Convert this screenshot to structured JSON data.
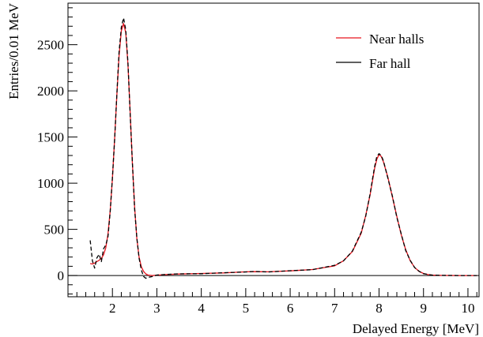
{
  "chart_data": {
    "type": "line",
    "title": "",
    "xlabel": "Delayed Energy [MeV]",
    "ylabel": "Entries/0.01 MeV",
    "xlim": [
      1.0,
      10.25
    ],
    "ylim": [
      -230,
      2950
    ],
    "xticks": [
      2,
      3,
      4,
      5,
      6,
      7,
      8,
      9,
      10
    ],
    "yticks": [
      0,
      500,
      1000,
      1500,
      2000,
      2500
    ],
    "grid": false,
    "legend_position": "top-right",
    "series": [
      {
        "name": "Near halls",
        "color": "#e8141e",
        "style": "solid",
        "x": [
          1.5,
          1.55,
          1.6,
          1.65,
          1.7,
          1.75,
          1.8,
          1.85,
          1.9,
          1.95,
          2.0,
          2.05,
          2.1,
          2.15,
          2.2,
          2.25,
          2.3,
          2.35,
          2.4,
          2.45,
          2.5,
          2.55,
          2.6,
          2.65,
          2.7,
          2.75,
          2.8,
          2.9,
          3.0,
          3.2,
          3.5,
          4.0,
          4.5,
          5.0,
          5.2,
          5.5,
          6.0,
          6.5,
          7.0,
          7.2,
          7.4,
          7.6,
          7.7,
          7.8,
          7.85,
          7.9,
          7.95,
          8.0,
          8.05,
          8.1,
          8.2,
          8.3,
          8.4,
          8.5,
          8.6,
          8.7,
          8.8,
          8.9,
          9.0,
          9.1,
          9.2,
          9.4,
          9.6,
          9.8,
          10.0,
          10.2
        ],
        "y": [
          130,
          125,
          135,
          150,
          165,
          185,
          225,
          300,
          450,
          700,
          1050,
          1480,
          1950,
          2380,
          2650,
          2730,
          2630,
          2280,
          1760,
          1210,
          740,
          400,
          200,
          95,
          45,
          18,
          5,
          0,
          4,
          10,
          16,
          22,
          28,
          40,
          42,
          40,
          50,
          65,
          105,
          160,
          260,
          460,
          650,
          880,
          1020,
          1160,
          1260,
          1310,
          1290,
          1230,
          1060,
          850,
          640,
          440,
          280,
          160,
          88,
          44,
          22,
          10,
          5,
          2,
          1,
          0,
          0,
          0
        ]
      },
      {
        "name": "Far hall",
        "color": "#000000",
        "style": "dashed",
        "x": [
          1.5,
          1.55,
          1.6,
          1.65,
          1.7,
          1.75,
          1.8,
          1.85,
          1.9,
          1.95,
          2.0,
          2.05,
          2.1,
          2.15,
          2.2,
          2.25,
          2.3,
          2.35,
          2.4,
          2.45,
          2.5,
          2.55,
          2.6,
          2.65,
          2.7,
          2.75,
          2.8,
          2.9,
          3.0,
          3.2,
          3.5,
          4.0,
          4.5,
          5.0,
          5.2,
          5.5,
          6.0,
          6.5,
          7.0,
          7.2,
          7.4,
          7.6,
          7.7,
          7.8,
          7.85,
          7.9,
          7.95,
          8.0,
          8.05,
          8.1,
          8.2,
          8.3,
          8.4,
          8.5,
          8.6,
          8.7,
          8.8,
          8.9,
          9.0,
          9.1,
          9.2,
          9.4,
          9.6,
          9.8,
          10.0,
          10.2
        ],
        "y": [
          380,
          160,
          80,
          190,
          230,
          150,
          290,
          330,
          420,
          690,
          1060,
          1470,
          1960,
          2420,
          2690,
          2790,
          2660,
          2300,
          1740,
          1220,
          720,
          410,
          190,
          60,
          -10,
          -30,
          -20,
          -10,
          5,
          12,
          18,
          20,
          30,
          38,
          44,
          38,
          52,
          63,
          110,
          158,
          265,
          470,
          640,
          890,
          1040,
          1180,
          1290,
          1320,
          1300,
          1240,
          1050,
          860,
          630,
          450,
          270,
          165,
          86,
          46,
          20,
          12,
          4,
          2,
          1,
          0,
          0,
          0
        ]
      }
    ]
  }
}
